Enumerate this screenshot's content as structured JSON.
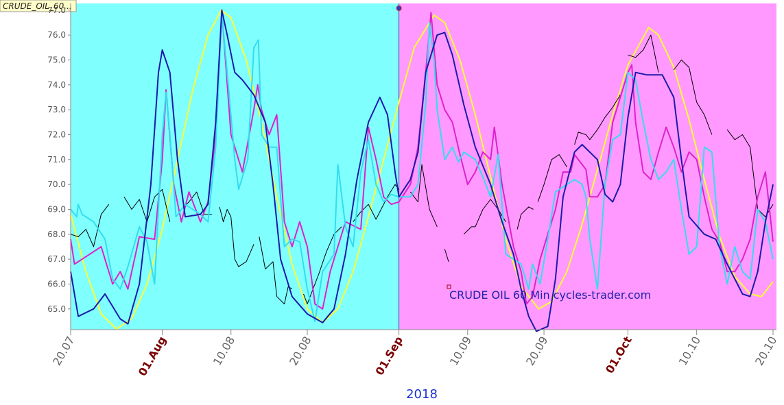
{
  "chart_data": {
    "type": "line",
    "title": "CRUDE_OIL_60...",
    "annotation": "CRUDE OIL 60 Min cycles-trader.com",
    "xlabel": "2018",
    "xlim": [
      0,
      92.45
    ],
    "ylim": [
      64.17,
      77.27
    ],
    "xticks": [
      {
        "value": 0,
        "label": "20.07",
        "color": "#666666"
      },
      {
        "value": 12,
        "label": "01.Aug",
        "color": "#7a0000"
      },
      {
        "value": 21,
        "label": "10.08",
        "color": "#666666"
      },
      {
        "value": 31,
        "label": "20.08",
        "color": "#666666"
      },
      {
        "value": 43,
        "label": "01.Sep",
        "color": "#7a0000"
      },
      {
        "value": 52,
        "label": "10.09",
        "color": "#666666"
      },
      {
        "value": 62,
        "label": "20.09",
        "color": "#666666"
      },
      {
        "value": 73,
        "label": "01.Oct",
        "color": "#7a0000"
      },
      {
        "value": 82,
        "label": "10.10",
        "color": "#666666"
      },
      {
        "value": 92,
        "label": "20.10",
        "color": "#666666"
      }
    ],
    "yticks": [
      {
        "value": 65,
        "label": "65.0"
      },
      {
        "value": 66,
        "label": "66.0"
      },
      {
        "value": 67,
        "label": "67.0"
      },
      {
        "value": 68,
        "label": "68.0"
      },
      {
        "value": 69,
        "label": "69.0"
      },
      {
        "value": 70,
        "label": "70.0"
      },
      {
        "value": 71,
        "label": "71.0"
      },
      {
        "value": 72,
        "label": "72.0"
      },
      {
        "value": 73,
        "label": "73.0"
      },
      {
        "value": 74,
        "label": "74.0"
      },
      {
        "value": 75,
        "label": "75.0"
      },
      {
        "value": 76,
        "label": "76.0"
      },
      {
        "value": 77,
        "label": "77.0"
      }
    ],
    "shading": [
      {
        "from": 0,
        "to": 43,
        "color": "#80ffff"
      },
      {
        "from": 43,
        "to": 92.45,
        "color": "#ff99ff"
      }
    ],
    "divider": {
      "value": 43,
      "color": "#3355aa"
    },
    "series": [
      {
        "color": "#ffff33",
        "width": 2,
        "x": [
          0,
          2,
          4,
          6,
          8,
          10,
          12,
          14,
          16,
          18,
          19.7,
          21,
          23,
          25,
          27,
          29,
          31,
          33,
          35,
          37,
          39,
          41,
          43,
          45,
          47.6,
          49,
          51,
          53,
          55,
          57,
          59,
          61.3,
          63,
          65,
          67,
          69,
          71,
          73,
          75.7,
          77,
          79,
          81,
          83,
          85,
          87,
          89,
          90.5,
          92
        ],
        "values": [
          68.8,
          66.5,
          64.8,
          64.2,
          64.6,
          66.0,
          68.2,
          71.0,
          73.8,
          76.0,
          77.0,
          76.7,
          75.0,
          72.5,
          69.5,
          66.8,
          65.0,
          64.45,
          65.0,
          66.5,
          68.7,
          71.0,
          73.3,
          75.5,
          76.8,
          76.5,
          75.0,
          72.8,
          70.3,
          67.8,
          65.9,
          65.0,
          65.3,
          66.5,
          68.4,
          70.6,
          72.8,
          74.8,
          76.3,
          76.0,
          74.7,
          72.6,
          70.2,
          67.9,
          66.3,
          65.6,
          65.5,
          66.1
        ]
      },
      {
        "color": "#000000",
        "width": 1,
        "x": [
          0,
          1,
          2,
          3,
          4,
          5,
          null,
          7,
          8,
          9,
          10,
          11,
          12,
          13,
          null,
          14.5,
          15.5,
          16.5,
          17.5,
          18.5,
          null,
          19.5,
          20,
          20.5,
          21,
          21.5,
          22,
          23,
          24,
          null,
          24.7,
          25.5,
          26.5,
          27,
          28,
          28.5,
          29,
          null,
          30.5,
          31,
          32.5,
          33.5,
          34.5,
          35.5,
          null,
          37,
          38,
          39,
          40,
          41.5,
          42.5,
          43,
          null,
          44.5,
          45.5,
          46,
          47,
          48,
          null,
          49,
          49.5,
          null,
          51.5,
          52.5,
          53,
          54,
          55,
          56,
          57,
          null,
          58.5,
          59,
          60,
          60.6,
          null,
          61.2,
          62,
          63,
          64,
          65,
          null,
          66,
          66.5,
          67.5,
          68,
          69,
          70,
          71,
          72,
          null,
          73,
          74,
          75,
          76,
          77,
          null,
          79,
          80,
          81,
          82,
          83,
          84,
          null,
          86,
          87,
          88,
          89,
          90,
          91,
          92
        ],
        "values": [
          68,
          67.9,
          68.2,
          67.5,
          68.8,
          69.2,
          null,
          69.5,
          69,
          69.4,
          68.5,
          69.5,
          69.8,
          68.5,
          null,
          69,
          69.3,
          69.7,
          68.8,
          68.8,
          null,
          69.1,
          68.5,
          69,
          68.7,
          67,
          66.7,
          66.9,
          67.6,
          null,
          67.9,
          66.6,
          66.9,
          65.5,
          65.2,
          65.9,
          65.8,
          null,
          65.6,
          65.2,
          66.4,
          67.3,
          68,
          68.3,
          null,
          68.5,
          68.9,
          69.2,
          68.6,
          69.5,
          70,
          69.8,
          null,
          69.7,
          69.3,
          70.8,
          69,
          68.3,
          null,
          67.4,
          66.9,
          null,
          68,
          68.3,
          68.3,
          69,
          69.4,
          69,
          68.5,
          null,
          68.2,
          68.8,
          69.1,
          69,
          null,
          69.3,
          70,
          71.0,
          71.2,
          70.7,
          null,
          71.6,
          72.1,
          72.0,
          71.8,
          72.2,
          72.7,
          73.1,
          73.6,
          null,
          75.2,
          75.1,
          75.4,
          76,
          74.5,
          null,
          74.6,
          75,
          74.7,
          73.3,
          72.8,
          72,
          null,
          72.2,
          71.8,
          72,
          71.5,
          69,
          68.7,
          69.2
        ]
      },
      {
        "color": "#dd22cc",
        "width": 2,
        "x": [
          0,
          0.5,
          1.5,
          3,
          4,
          5.5,
          6.5,
          7.5,
          9,
          11,
          12,
          12.5,
          13.5,
          14.5,
          15.5,
          17,
          18,
          19,
          19.8,
          21,
          22.5,
          24,
          24.5,
          25,
          26,
          27,
          28,
          29,
          30,
          31,
          32,
          33,
          34,
          35,
          36,
          38,
          39,
          40,
          41,
          42,
          43,
          44.5,
          45.5,
          46.5,
          47.2,
          48,
          49,
          50,
          51,
          52,
          53,
          54,
          55,
          55.5,
          56.5,
          58,
          59,
          59.7,
          60.5,
          61.5,
          62.5,
          63.5,
          64.5,
          65.5,
          66,
          67.5,
          68,
          69,
          70,
          71,
          72,
          73,
          73.5,
          74,
          75,
          76,
          77,
          78,
          79,
          80,
          81,
          82,
          83,
          84,
          85,
          86,
          87,
          88,
          89,
          90,
          91,
          92
        ],
        "values": [
          67.8,
          66.8,
          67.0,
          67.3,
          67.5,
          66.0,
          66.5,
          65.8,
          67.9,
          67.8,
          71,
          73.8,
          70,
          68.5,
          69.7,
          68.5,
          69.3,
          72,
          77,
          72,
          70.5,
          73,
          74,
          73,
          72,
          72.8,
          68.5,
          67.5,
          68.5,
          67.5,
          65.2,
          65,
          66.5,
          67.5,
          68.5,
          68.2,
          72.3,
          71,
          69.5,
          69.2,
          69.3,
          70,
          71.5,
          74.5,
          76.9,
          74,
          73,
          72.5,
          71.2,
          70,
          70.5,
          71.3,
          71,
          72.3,
          70,
          67.5,
          66.5,
          65.2,
          65.5,
          67,
          68,
          69,
          70.5,
          70.5,
          71.2,
          70.6,
          69.5,
          69.5,
          70,
          72.5,
          73.5,
          74.5,
          74.8,
          72.5,
          70.5,
          70.2,
          71.3,
          72.3,
          71.5,
          70.5,
          71.3,
          71,
          69.5,
          68.2,
          67.7,
          66.5,
          66.5,
          67,
          67.8,
          69.5,
          70.5,
          67.7
        ]
      },
      {
        "color": "#33ddee",
        "width": 2,
        "x": [
          0,
          0.8,
          1,
          1.5,
          3,
          4.5,
          5.5,
          6.5,
          7.5,
          9,
          10,
          11,
          12,
          12.5,
          13,
          13.8,
          15,
          17,
          18,
          19,
          19.8,
          20.5,
          21.5,
          22,
          23.2,
          24,
          24.6,
          25,
          26,
          27,
          28,
          29,
          30,
          31,
          32,
          33,
          34.5,
          35,
          36,
          37,
          38,
          39,
          40,
          41,
          42,
          43,
          44.5,
          45.5,
          46.5,
          47,
          47.6,
          48,
          49,
          50,
          50.8,
          51.5,
          53,
          54,
          55,
          56,
          57,
          58,
          59,
          60,
          60.5,
          61.5,
          62.5,
          63.5,
          64,
          66,
          67,
          67.5,
          68,
          69,
          70,
          71,
          72,
          73,
          74,
          75,
          76,
          77,
          78,
          79,
          80,
          81,
          82,
          83,
          84,
          85,
          86,
          87,
          88,
          89,
          90,
          91,
          92
        ],
        "values": [
          69,
          68.7,
          69.2,
          68.8,
          68.5,
          67.8,
          66.2,
          65.8,
          66.7,
          68.3,
          67.7,
          66.0,
          72,
          73.7,
          72,
          68.7,
          69.2,
          68.8,
          68.5,
          71.5,
          76.9,
          74.5,
          71,
          69.8,
          71,
          75.5,
          75.8,
          72,
          71.5,
          71.5,
          67.5,
          67.8,
          67.7,
          65.8,
          64.5,
          66.5,
          67.2,
          70.8,
          68.3,
          67.5,
          70.5,
          71.8,
          70,
          69.3,
          69.6,
          69.5,
          69.5,
          70,
          73.2,
          76.5,
          75,
          73,
          71,
          71.5,
          70.9,
          71.3,
          71,
          70.3,
          69.5,
          71.2,
          67.2,
          67,
          66.8,
          65.8,
          66.8,
          66,
          67.8,
          69.7,
          69.8,
          70.2,
          70,
          69.5,
          67.8,
          65.8,
          70,
          71.8,
          72,
          74.5,
          74.2,
          72.5,
          71,
          70.2,
          70.5,
          71,
          69,
          67.2,
          67.5,
          71.5,
          71.3,
          67.5,
          66,
          67.5,
          66.5,
          66.2,
          69,
          68.5,
          67
        ]
      },
      {
        "color": "#1a1aaa",
        "width": 2,
        "x": [
          0,
          1,
          3,
          4.5,
          6.5,
          7.5,
          9,
          10.5,
          11.5,
          12,
          13,
          14,
          15,
          17,
          18,
          19,
          19.8,
          20.5,
          21.5,
          22.5,
          24,
          25.5,
          26.5,
          27.5,
          29,
          31,
          33,
          34.5,
          36,
          37.5,
          39,
          40.5,
          41.5,
          42.5,
          43,
          44.5,
          45.5,
          46.5,
          48,
          49,
          50,
          51.5,
          53,
          55,
          56.5,
          58,
          59,
          60,
          61,
          62.5,
          63.5,
          64.5,
          66,
          67,
          69,
          70,
          71,
          72,
          73,
          74,
          75.5,
          77.5,
          79,
          80,
          81,
          83,
          84.5,
          86,
          88,
          89,
          90,
          91,
          92
        ],
        "values": [
          66.5,
          64.7,
          65.0,
          65.6,
          64.6,
          64.4,
          66,
          70,
          74.5,
          75.4,
          74.5,
          71,
          68.7,
          68.8,
          69.2,
          72.5,
          77.0,
          76,
          74.5,
          74.2,
          73.6,
          72.5,
          70,
          67,
          65.5,
          64.8,
          64.45,
          65,
          67.2,
          70.2,
          72.5,
          73.5,
          72.8,
          70.5,
          69.5,
          70.2,
          71.3,
          74.5,
          76.0,
          76.1,
          75.2,
          73.2,
          71.5,
          70,
          68.5,
          67.2,
          65.8,
          64.7,
          64.1,
          64.3,
          66.2,
          69.5,
          71.3,
          71.6,
          71.0,
          69.6,
          69.3,
          70,
          72.7,
          74.5,
          74.4,
          74.4,
          73.5,
          71,
          68.7,
          68.0,
          67.8,
          66.8,
          65.6,
          65.5,
          66.5,
          68.5,
          70
        ]
      }
    ]
  }
}
